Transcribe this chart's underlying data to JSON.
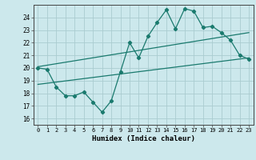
{
  "title": "",
  "xlabel": "Humidex (Indice chaleur)",
  "bg_color": "#cce8ec",
  "grid_color": "#aaccd0",
  "line_color": "#1a7a6e",
  "xlim": [
    -0.5,
    23.5
  ],
  "ylim": [
    15.5,
    25.0
  ],
  "yticks": [
    16,
    17,
    18,
    19,
    20,
    21,
    22,
    23,
    24
  ],
  "xticks": [
    0,
    1,
    2,
    3,
    4,
    5,
    6,
    7,
    8,
    9,
    10,
    11,
    12,
    13,
    14,
    15,
    16,
    17,
    18,
    19,
    20,
    21,
    22,
    23
  ],
  "zigzag_x": [
    0,
    1,
    2,
    3,
    4,
    5,
    6,
    7,
    8,
    9,
    10,
    11,
    12,
    13,
    14,
    15,
    16,
    17,
    18,
    19,
    20,
    21,
    22,
    23
  ],
  "zigzag_y": [
    20.0,
    19.9,
    18.5,
    17.8,
    17.8,
    18.1,
    17.3,
    16.5,
    17.4,
    19.7,
    22.0,
    20.8,
    22.5,
    23.6,
    24.6,
    23.1,
    24.7,
    24.5,
    23.2,
    23.3,
    22.8,
    22.2,
    21.0,
    20.7
  ],
  "upper_line_x": [
    0,
    23
  ],
  "upper_line_y": [
    20.1,
    22.8
  ],
  "lower_line_x": [
    0,
    23
  ],
  "lower_line_y": [
    18.7,
    20.8
  ]
}
